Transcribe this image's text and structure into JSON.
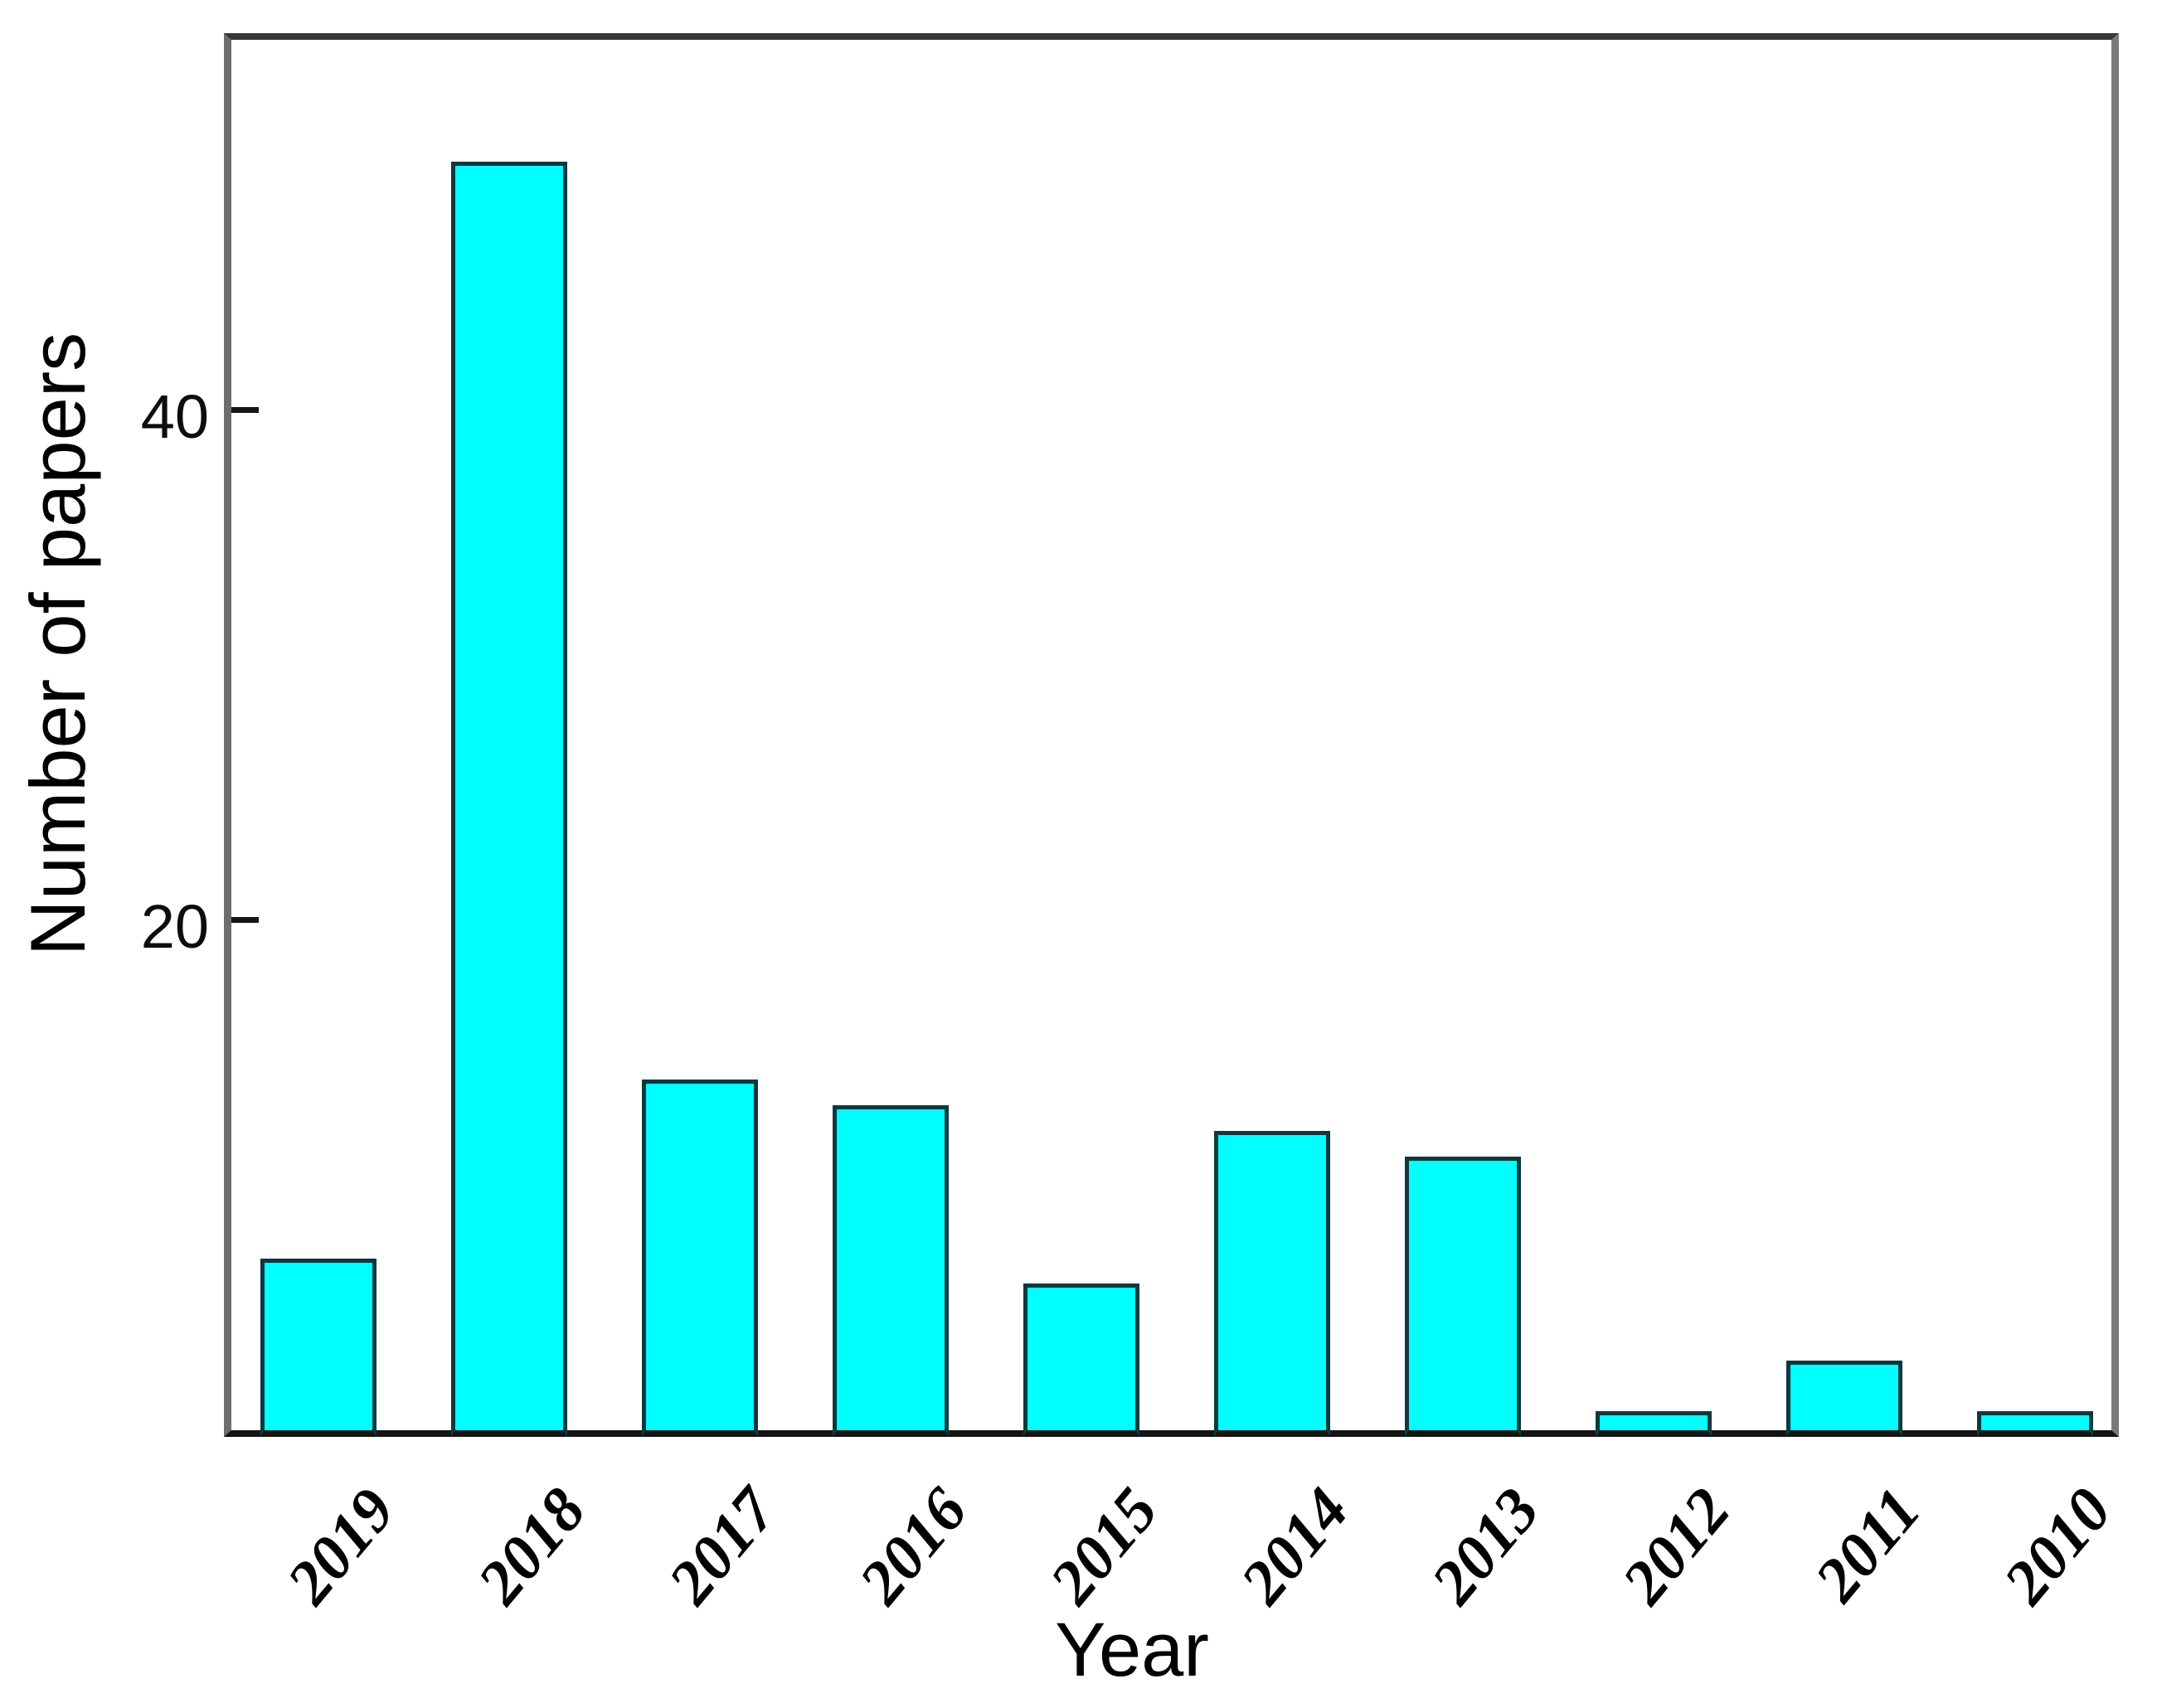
{
  "chart_data": {
    "type": "bar",
    "title": "",
    "xlabel": "Year",
    "ylabel": "Number of papers",
    "categories": [
      "2019",
      "2018",
      "2017",
      "2016",
      "2015",
      "2014",
      "2013",
      "2012",
      "2011",
      "2010"
    ],
    "values": [
      7,
      50,
      14,
      13,
      6,
      12,
      11,
      1,
      3,
      1
    ],
    "yticks": [
      20,
      40
    ],
    "ylim": [
      0,
      54.5
    ],
    "xtick_rotation_deg": 50,
    "grid": false,
    "legend": "none",
    "colors": {
      "bar_fill": "#00ffff",
      "bar_edge": "#0a3a3f",
      "axis_top": "#383838",
      "axis_right": "#7a7a7a",
      "axis_bottom": "#141414",
      "axis_left": "#6e6e6e",
      "tick_text": "#0d0d0d"
    }
  }
}
